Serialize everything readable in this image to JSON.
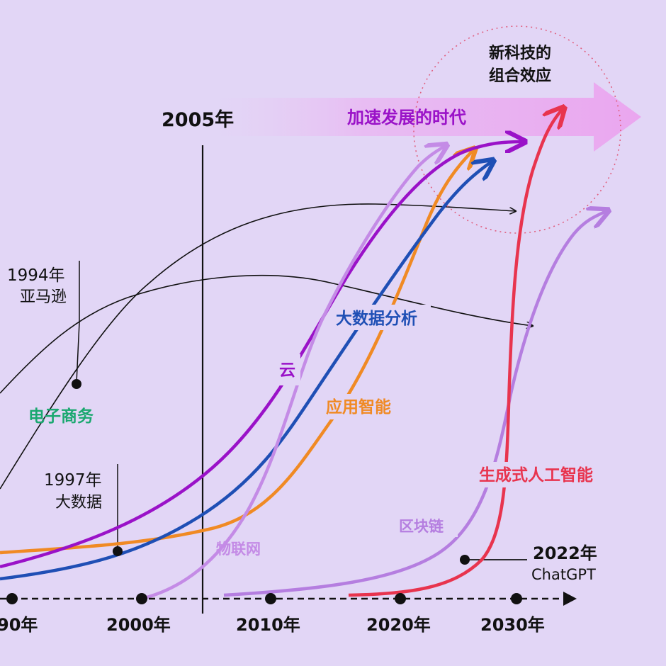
{
  "header": {
    "title": "加速发展的时代",
    "combo_line1": "新科技的",
    "combo_line2": "组合效应"
  },
  "marker_2005": "2005年",
  "axis": {
    "ticks": [
      "90年",
      "2000年",
      "2010年",
      "2020年",
      "2030年"
    ]
  },
  "events": {
    "amazon_year": "1994年",
    "amazon_name": "亚马逊",
    "bigdata_year": "1997年",
    "bigdata_name": "大数据",
    "chatgpt_year": "2022年",
    "chatgpt_name": "ChatGPT"
  },
  "curves": {
    "ecommerce": "电子商务",
    "cloud": "云",
    "bigdata_analysis": "大数据分析",
    "applied_ai": "应用智能",
    "iot": "物联网",
    "blockchain": "区块链",
    "genai": "生成式人工智能"
  },
  "colors": {
    "background": "#e2d6f6",
    "cloud": "#9a12c8",
    "bigdata_analysis": "#1f4fb5",
    "applied_ai": "#f08a24",
    "iot": "#c48be6",
    "blockchain": "#b57ee0",
    "genai": "#e8344e",
    "ecommerce": "#1aa870",
    "black": "#111111"
  }
}
